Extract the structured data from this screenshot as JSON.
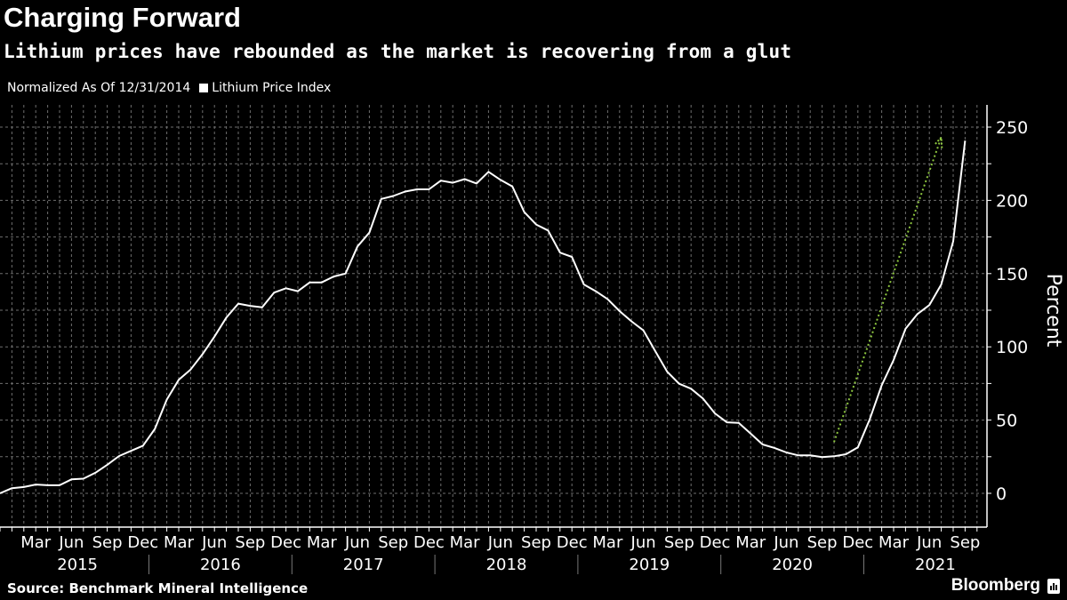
{
  "title": "Charging Forward",
  "subtitle": "Lithium prices have rebounded as the market is recovering from a glut",
  "source": "Source: Benchmark Mineral Intelligence",
  "brand": "Bloomberg",
  "chart_data": {
    "type": "line",
    "note": "Normalized As Of 12/31/2014",
    "ylabel": "Percent",
    "ylim": [
      -25,
      260
    ],
    "yticks": [
      0,
      50,
      100,
      150,
      200,
      250
    ],
    "grid": true,
    "legend_placement": "top-left",
    "month_ticks": [
      "Mar",
      "Jun",
      "Sep",
      "Dec"
    ],
    "years": [
      "2015",
      "2016",
      "2017",
      "2018",
      "2019",
      "2020",
      "2021"
    ],
    "colors": {
      "line": "#ffffff",
      "arrow": "#8dc63f",
      "background": "#000000",
      "grid": "#6e6e6e"
    },
    "series": [
      {
        "name": "Lithium Price Index",
        "x": [
          "2014-12",
          "2015-01",
          "2015-02",
          "2015-03",
          "2015-04",
          "2015-05",
          "2015-06",
          "2015-07",
          "2015-08",
          "2015-09",
          "2015-10",
          "2015-11",
          "2015-12",
          "2016-01",
          "2016-02",
          "2016-03",
          "2016-04",
          "2016-05",
          "2016-06",
          "2016-07",
          "2016-08",
          "2016-09",
          "2016-10",
          "2016-11",
          "2016-12",
          "2017-01",
          "2017-02",
          "2017-03",
          "2017-04",
          "2017-05",
          "2017-06",
          "2017-07",
          "2017-08",
          "2017-09",
          "2017-10",
          "2017-11",
          "2017-12",
          "2018-01",
          "2018-02",
          "2018-03",
          "2018-04",
          "2018-05",
          "2018-06",
          "2018-07",
          "2018-08",
          "2018-09",
          "2018-10",
          "2018-11",
          "2018-12",
          "2019-01",
          "2019-02",
          "2019-03",
          "2019-04",
          "2019-05",
          "2019-06",
          "2019-07",
          "2019-08",
          "2019-09",
          "2019-10",
          "2019-11",
          "2019-12",
          "2020-01",
          "2020-02",
          "2020-03",
          "2020-04",
          "2020-05",
          "2020-06",
          "2020-07",
          "2020-08",
          "2020-09",
          "2020-10",
          "2020-11",
          "2020-12",
          "2021-01",
          "2021-02",
          "2021-03",
          "2021-04",
          "2021-05",
          "2021-06",
          "2021-07",
          "2021-08",
          "2021-09"
        ],
        "values": [
          0,
          3.5,
          4.3,
          6,
          5.5,
          5.5,
          9.5,
          10,
          14,
          19.5,
          25.5,
          29,
          32.5,
          44,
          64,
          77.5,
          84.5,
          95,
          107,
          120,
          129.5,
          128,
          127,
          137,
          140,
          138,
          144,
          144,
          148,
          150,
          168.5,
          178,
          201,
          203,
          206,
          207.5,
          207.5,
          213.5,
          212,
          214.5,
          211.5,
          219.5,
          214,
          209.5,
          192,
          183.5,
          179.4,
          164.3,
          161.4,
          142.6,
          138,
          132.5,
          124.4,
          117.4,
          111.2,
          97,
          83,
          74.8,
          71.4,
          64.7,
          54.6,
          48.5,
          48.1,
          40.8,
          33.4,
          31,
          27.9,
          25.9,
          25.9,
          24.7,
          25.3,
          26.7,
          31.4,
          50.6,
          73.8,
          91,
          112.3,
          122.4,
          128.5,
          142.6,
          172,
          240.7
        ]
      }
    ],
    "annotations": [
      {
        "type": "dotted-arrow",
        "from": {
          "x": "2020-10",
          "y": 35
        },
        "to": {
          "x": "2021-07",
          "y": 243
        }
      }
    ]
  }
}
